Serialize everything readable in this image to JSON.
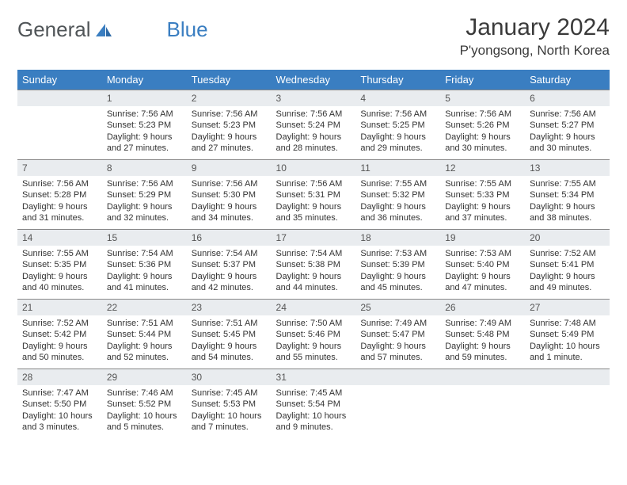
{
  "brand": {
    "part1": "General",
    "part2": "Blue"
  },
  "title": "January 2024",
  "location": "P'yongsong, North Korea",
  "colors": {
    "header_bg": "#3a7ec1",
    "header_text": "#ffffff",
    "daynum_bg": "#e9ecef",
    "border": "#888888",
    "body_text": "#333333",
    "page_bg": "#ffffff"
  },
  "weekdays": [
    "Sunday",
    "Monday",
    "Tuesday",
    "Wednesday",
    "Thursday",
    "Friday",
    "Saturday"
  ],
  "weeks": [
    [
      null,
      {
        "n": "1",
        "sr": "Sunrise: 7:56 AM",
        "ss": "Sunset: 5:23 PM",
        "dl": "Daylight: 9 hours and 27 minutes."
      },
      {
        "n": "2",
        "sr": "Sunrise: 7:56 AM",
        "ss": "Sunset: 5:23 PM",
        "dl": "Daylight: 9 hours and 27 minutes."
      },
      {
        "n": "3",
        "sr": "Sunrise: 7:56 AM",
        "ss": "Sunset: 5:24 PM",
        "dl": "Daylight: 9 hours and 28 minutes."
      },
      {
        "n": "4",
        "sr": "Sunrise: 7:56 AM",
        "ss": "Sunset: 5:25 PM",
        "dl": "Daylight: 9 hours and 29 minutes."
      },
      {
        "n": "5",
        "sr": "Sunrise: 7:56 AM",
        "ss": "Sunset: 5:26 PM",
        "dl": "Daylight: 9 hours and 30 minutes."
      },
      {
        "n": "6",
        "sr": "Sunrise: 7:56 AM",
        "ss": "Sunset: 5:27 PM",
        "dl": "Daylight: 9 hours and 30 minutes."
      }
    ],
    [
      {
        "n": "7",
        "sr": "Sunrise: 7:56 AM",
        "ss": "Sunset: 5:28 PM",
        "dl": "Daylight: 9 hours and 31 minutes."
      },
      {
        "n": "8",
        "sr": "Sunrise: 7:56 AM",
        "ss": "Sunset: 5:29 PM",
        "dl": "Daylight: 9 hours and 32 minutes."
      },
      {
        "n": "9",
        "sr": "Sunrise: 7:56 AM",
        "ss": "Sunset: 5:30 PM",
        "dl": "Daylight: 9 hours and 34 minutes."
      },
      {
        "n": "10",
        "sr": "Sunrise: 7:56 AM",
        "ss": "Sunset: 5:31 PM",
        "dl": "Daylight: 9 hours and 35 minutes."
      },
      {
        "n": "11",
        "sr": "Sunrise: 7:55 AM",
        "ss": "Sunset: 5:32 PM",
        "dl": "Daylight: 9 hours and 36 minutes."
      },
      {
        "n": "12",
        "sr": "Sunrise: 7:55 AM",
        "ss": "Sunset: 5:33 PM",
        "dl": "Daylight: 9 hours and 37 minutes."
      },
      {
        "n": "13",
        "sr": "Sunrise: 7:55 AM",
        "ss": "Sunset: 5:34 PM",
        "dl": "Daylight: 9 hours and 38 minutes."
      }
    ],
    [
      {
        "n": "14",
        "sr": "Sunrise: 7:55 AM",
        "ss": "Sunset: 5:35 PM",
        "dl": "Daylight: 9 hours and 40 minutes."
      },
      {
        "n": "15",
        "sr": "Sunrise: 7:54 AM",
        "ss": "Sunset: 5:36 PM",
        "dl": "Daylight: 9 hours and 41 minutes."
      },
      {
        "n": "16",
        "sr": "Sunrise: 7:54 AM",
        "ss": "Sunset: 5:37 PM",
        "dl": "Daylight: 9 hours and 42 minutes."
      },
      {
        "n": "17",
        "sr": "Sunrise: 7:54 AM",
        "ss": "Sunset: 5:38 PM",
        "dl": "Daylight: 9 hours and 44 minutes."
      },
      {
        "n": "18",
        "sr": "Sunrise: 7:53 AM",
        "ss": "Sunset: 5:39 PM",
        "dl": "Daylight: 9 hours and 45 minutes."
      },
      {
        "n": "19",
        "sr": "Sunrise: 7:53 AM",
        "ss": "Sunset: 5:40 PM",
        "dl": "Daylight: 9 hours and 47 minutes."
      },
      {
        "n": "20",
        "sr": "Sunrise: 7:52 AM",
        "ss": "Sunset: 5:41 PM",
        "dl": "Daylight: 9 hours and 49 minutes."
      }
    ],
    [
      {
        "n": "21",
        "sr": "Sunrise: 7:52 AM",
        "ss": "Sunset: 5:42 PM",
        "dl": "Daylight: 9 hours and 50 minutes."
      },
      {
        "n": "22",
        "sr": "Sunrise: 7:51 AM",
        "ss": "Sunset: 5:44 PM",
        "dl": "Daylight: 9 hours and 52 minutes."
      },
      {
        "n": "23",
        "sr": "Sunrise: 7:51 AM",
        "ss": "Sunset: 5:45 PM",
        "dl": "Daylight: 9 hours and 54 minutes."
      },
      {
        "n": "24",
        "sr": "Sunrise: 7:50 AM",
        "ss": "Sunset: 5:46 PM",
        "dl": "Daylight: 9 hours and 55 minutes."
      },
      {
        "n": "25",
        "sr": "Sunrise: 7:49 AM",
        "ss": "Sunset: 5:47 PM",
        "dl": "Daylight: 9 hours and 57 minutes."
      },
      {
        "n": "26",
        "sr": "Sunrise: 7:49 AM",
        "ss": "Sunset: 5:48 PM",
        "dl": "Daylight: 9 hours and 59 minutes."
      },
      {
        "n": "27",
        "sr": "Sunrise: 7:48 AM",
        "ss": "Sunset: 5:49 PM",
        "dl": "Daylight: 10 hours and 1 minute."
      }
    ],
    [
      {
        "n": "28",
        "sr": "Sunrise: 7:47 AM",
        "ss": "Sunset: 5:50 PM",
        "dl": "Daylight: 10 hours and 3 minutes."
      },
      {
        "n": "29",
        "sr": "Sunrise: 7:46 AM",
        "ss": "Sunset: 5:52 PM",
        "dl": "Daylight: 10 hours and 5 minutes."
      },
      {
        "n": "30",
        "sr": "Sunrise: 7:45 AM",
        "ss": "Sunset: 5:53 PM",
        "dl": "Daylight: 10 hours and 7 minutes."
      },
      {
        "n": "31",
        "sr": "Sunrise: 7:45 AM",
        "ss": "Sunset: 5:54 PM",
        "dl": "Daylight: 10 hours and 9 minutes."
      },
      null,
      null,
      null
    ]
  ]
}
